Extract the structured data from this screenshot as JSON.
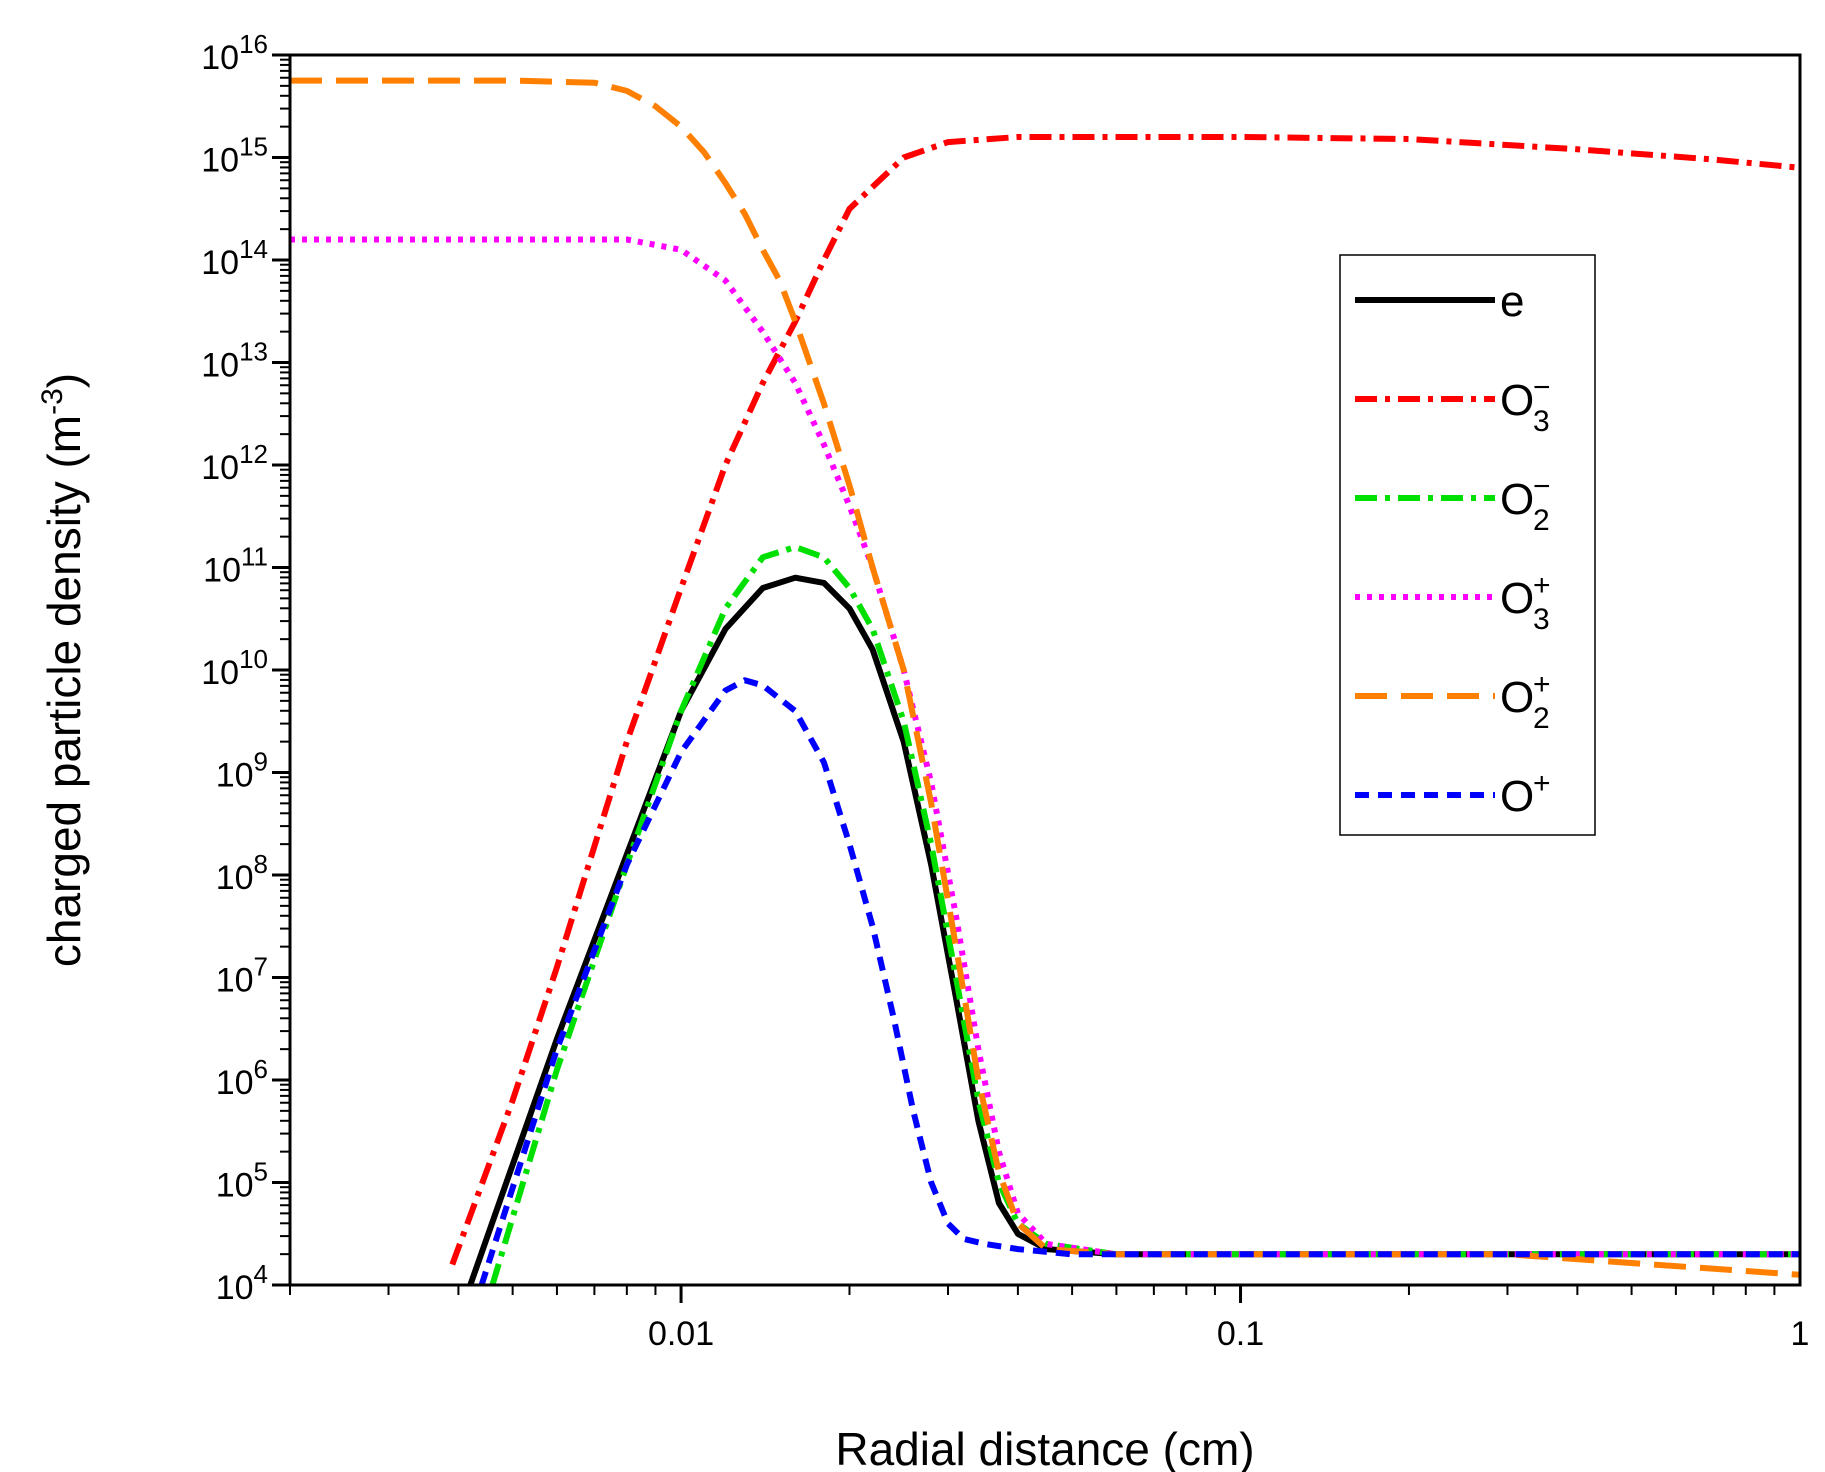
{
  "chart_data": {
    "type": "line",
    "title": "",
    "xlabel": "Radial distance (cm)",
    "ylabel_base": "charged particle density (m",
    "ylabel_exp": "-3",
    "ylabel_close": ")",
    "xscale": "log",
    "yscale": "log",
    "xlim": [
      0.002,
      1
    ],
    "ylim": [
      10000,
      1e+16
    ],
    "x_ticks": [
      {
        "value": 0.01,
        "label": "0.01"
      },
      {
        "value": 0.1,
        "label": "0.1"
      },
      {
        "value": 1,
        "label": "1"
      }
    ],
    "y_ticks": [
      {
        "exp": 4,
        "base": "10",
        "sup": "4"
      },
      {
        "exp": 5,
        "base": "10",
        "sup": "5"
      },
      {
        "exp": 6,
        "base": "10",
        "sup": "6"
      },
      {
        "exp": 7,
        "base": "10",
        "sup": "7"
      },
      {
        "exp": 8,
        "base": "10",
        "sup": "8"
      },
      {
        "exp": 9,
        "base": "10",
        "sup": "9"
      },
      {
        "exp": 10,
        "base": "10",
        "sup": "10"
      },
      {
        "exp": 11,
        "base": "10",
        "sup": "11"
      },
      {
        "exp": 12,
        "base": "10",
        "sup": "12"
      },
      {
        "exp": 13,
        "base": "10",
        "sup": "13"
      },
      {
        "exp": 14,
        "base": "10",
        "sup": "14"
      },
      {
        "exp": 15,
        "base": "10",
        "sup": "15"
      },
      {
        "exp": 16,
        "base": "10",
        "sup": "16"
      }
    ],
    "legend_position": "top-right",
    "series": [
      {
        "name": "e",
        "label_base": "e",
        "label_sup": "",
        "label_sub": "",
        "color": "#000000",
        "dash": "solid",
        "x": [
          0.0042,
          0.006,
          0.008,
          0.01,
          0.012,
          0.014,
          0.016,
          0.018,
          0.02,
          0.022,
          0.025,
          0.028,
          0.031,
          0.034,
          0.037,
          0.04,
          0.045,
          0.06,
          0.1,
          0.3,
          1
        ],
        "log10y": [
          4.0,
          6.4,
          8.2,
          9.6,
          10.4,
          10.8,
          10.9,
          10.85,
          10.6,
          10.2,
          9.3,
          8.1,
          6.8,
          5.6,
          4.8,
          4.5,
          4.35,
          4.3,
          4.3,
          4.3,
          4.3
        ]
      },
      {
        "name": "O3-",
        "label_base": "O",
        "label_sup": "−",
        "label_sub": "3",
        "color": "#ff0000",
        "dash": "dashdot",
        "x": [
          0.0039,
          0.005,
          0.006,
          0.008,
          0.01,
          0.012,
          0.014,
          0.016,
          0.018,
          0.02,
          0.025,
          0.03,
          0.04,
          0.06,
          0.1,
          0.2,
          0.4,
          0.7,
          1
        ],
        "log10y": [
          4.2,
          5.8,
          7.1,
          9.3,
          10.8,
          12.0,
          12.8,
          13.4,
          14.0,
          14.5,
          15.0,
          15.15,
          15.2,
          15.2,
          15.2,
          15.18,
          15.08,
          14.98,
          14.9
        ]
      },
      {
        "name": "O2-",
        "label_base": "O",
        "label_sup": "−",
        "label_sub": "2",
        "color": "#00e000",
        "dash": "dashdot",
        "x": [
          0.0046,
          0.006,
          0.008,
          0.01,
          0.012,
          0.014,
          0.016,
          0.018,
          0.02,
          0.022,
          0.025,
          0.028,
          0.031,
          0.034,
          0.037,
          0.04,
          0.045,
          0.06,
          0.1,
          0.3,
          1
        ],
        "log10y": [
          4.0,
          6.1,
          8.1,
          9.6,
          10.6,
          11.1,
          11.2,
          11.1,
          10.8,
          10.4,
          9.5,
          8.3,
          7.0,
          5.8,
          5.0,
          4.6,
          4.4,
          4.3,
          4.3,
          4.3,
          4.3
        ]
      },
      {
        "name": "O3+",
        "label_base": "O",
        "label_sup": "+",
        "label_sub": "3",
        "color": "#ff00ff",
        "dash": "dot",
        "x": [
          0.002,
          0.005,
          0.008,
          0.01,
          0.012,
          0.014,
          0.016,
          0.018,
          0.02,
          0.022,
          0.025,
          0.028,
          0.031,
          0.034,
          0.037,
          0.04,
          0.045,
          0.06,
          0.1,
          0.3,
          1
        ],
        "log10y": [
          14.2,
          14.2,
          14.2,
          14.1,
          13.8,
          13.3,
          12.8,
          12.2,
          11.6,
          11.0,
          10.0,
          8.9,
          7.6,
          6.3,
          5.3,
          4.7,
          4.4,
          4.3,
          4.3,
          4.3,
          4.3
        ]
      },
      {
        "name": "O2+",
        "label_base": "O",
        "label_sup": "+",
        "label_sub": "2",
        "color": "#ff8000",
        "dash": "longdash",
        "x": [
          0.002,
          0.005,
          0.007,
          0.008,
          0.009,
          0.01,
          0.011,
          0.012,
          0.013,
          0.014,
          0.015,
          0.016,
          0.018,
          0.02,
          0.022,
          0.025,
          0.028,
          0.031,
          0.034,
          0.037,
          0.04,
          0.045,
          0.06,
          0.1,
          0.3,
          1
        ],
        "log10y": [
          15.75,
          15.75,
          15.73,
          15.65,
          15.5,
          15.3,
          15.05,
          14.75,
          14.45,
          14.1,
          13.8,
          13.4,
          12.6,
          11.8,
          11.0,
          10.0,
          8.7,
          7.3,
          6.0,
          5.1,
          4.6,
          4.35,
          4.3,
          4.3,
          4.3,
          4.1
        ]
      },
      {
        "name": "O+",
        "label_base": "O",
        "label_sup": "+",
        "label_sub": "",
        "color": "#0000ff",
        "dash": "shortdash",
        "x": [
          0.0044,
          0.006,
          0.008,
          0.01,
          0.012,
          0.013,
          0.014,
          0.016,
          0.018,
          0.02,
          0.022,
          0.024,
          0.026,
          0.028,
          0.03,
          0.032,
          0.035,
          0.04,
          0.05,
          0.1,
          0.3,
          1
        ],
        "log10y": [
          4.0,
          6.3,
          8.1,
          9.2,
          9.8,
          9.9,
          9.85,
          9.6,
          9.1,
          8.3,
          7.5,
          6.6,
          5.7,
          5.0,
          4.6,
          4.45,
          4.4,
          4.35,
          4.3,
          4.3,
          4.3,
          4.3
        ]
      }
    ]
  }
}
